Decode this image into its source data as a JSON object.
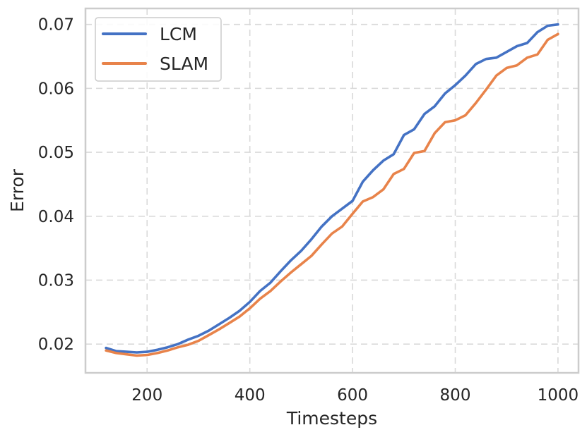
{
  "chart_data": {
    "type": "line",
    "title": "",
    "xlabel": "Timesteps",
    "ylabel": "Error",
    "xlim": [
      80,
      1040
    ],
    "ylim": [
      0.0155,
      0.0725
    ],
    "xticks": [
      200,
      400,
      600,
      800,
      1000
    ],
    "xtick_labels": [
      "200",
      "400",
      "600",
      "800",
      "1000"
    ],
    "yticks": [
      0.02,
      0.03,
      0.04,
      0.05,
      0.06,
      0.07
    ],
    "ytick_labels": [
      "0.02",
      "0.03",
      "0.04",
      "0.05",
      "0.06",
      "0.07"
    ],
    "grid": true,
    "legend_position": "top-left",
    "x": [
      120,
      140,
      160,
      180,
      200,
      220,
      240,
      260,
      280,
      300,
      320,
      340,
      360,
      380,
      400,
      420,
      440,
      460,
      480,
      500,
      520,
      540,
      560,
      580,
      600,
      620,
      640,
      660,
      680,
      700,
      720,
      740,
      760,
      780,
      800,
      820,
      840,
      860,
      880,
      900,
      920,
      940,
      960,
      980,
      1000
    ],
    "series": [
      {
        "name": "LCM",
        "color": "#4472c4",
        "values": [
          0.0194,
          0.0189,
          0.0188,
          0.0187,
          0.0188,
          0.0191,
          0.0195,
          0.02,
          0.0207,
          0.0213,
          0.0221,
          0.0231,
          0.0241,
          0.0252,
          0.0266,
          0.0283,
          0.0296,
          0.0314,
          0.0331,
          0.0346,
          0.0364,
          0.0384,
          0.04,
          0.0412,
          0.0424,
          0.0454,
          0.0472,
          0.0487,
          0.0497,
          0.0527,
          0.0536,
          0.056,
          0.0572,
          0.0592,
          0.0605,
          0.062,
          0.0638,
          0.0646,
          0.0648,
          0.0657,
          0.0666,
          0.0671,
          0.0688,
          0.0698,
          0.07
        ]
      },
      {
        "name": "SLAM",
        "color": "#e8834a",
        "values": [
          0.019,
          0.0186,
          0.0184,
          0.0182,
          0.0183,
          0.0186,
          0.019,
          0.0195,
          0.0199,
          0.0205,
          0.0214,
          0.0223,
          0.0233,
          0.0243,
          0.0256,
          0.0271,
          0.0283,
          0.0298,
          0.0312,
          0.0325,
          0.0338,
          0.0356,
          0.0373,
          0.0384,
          0.0404,
          0.0423,
          0.043,
          0.0442,
          0.0466,
          0.0474,
          0.0499,
          0.0502,
          0.053,
          0.0547,
          0.055,
          0.0558,
          0.0577,
          0.0598,
          0.062,
          0.0632,
          0.0636,
          0.0648,
          0.0653,
          0.0676,
          0.0685
        ]
      }
    ]
  }
}
